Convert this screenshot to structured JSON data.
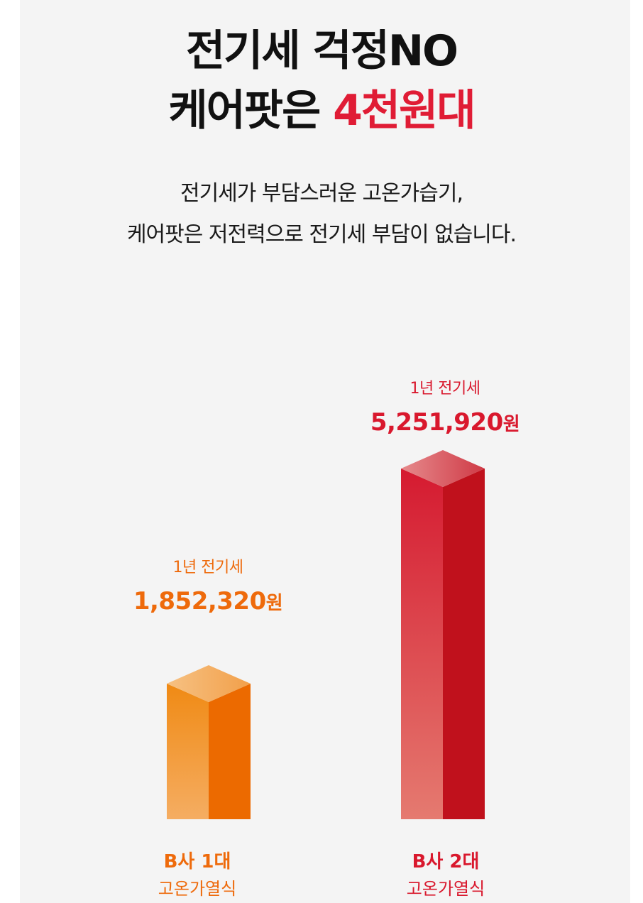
{
  "headline": {
    "line1": "전기세 걱정NO",
    "line2_prefix": "케어팟은 ",
    "line2_accent": "4천원대"
  },
  "subtitle": {
    "line1": "전기세가 부담스러운 고온가습기,",
    "line2": "케어팟은 저전력으로 전기세 부담이 없습니다."
  },
  "chart_data": {
    "type": "bar",
    "title": "",
    "xlabel": "",
    "ylabel": "",
    "categories": [
      "B사 1대",
      "B사 2대"
    ],
    "category_sub_labels": [
      "고온가열식",
      "고온가열식"
    ],
    "value_caption": "1년 전기세",
    "unit": "원",
    "values": [
      1852320,
      5251920
    ],
    "value_labels": [
      "1,852,320",
      "5,251,920"
    ],
    "ylim": [
      0,
      5251920
    ],
    "grid": false,
    "colors": [
      "#ee6a0b",
      "#d9182d"
    ]
  },
  "colors": {
    "accent": "#e01c35",
    "orange": "#ee6a0b",
    "red": "#d9182d",
    "background": "#f4f4f4"
  }
}
